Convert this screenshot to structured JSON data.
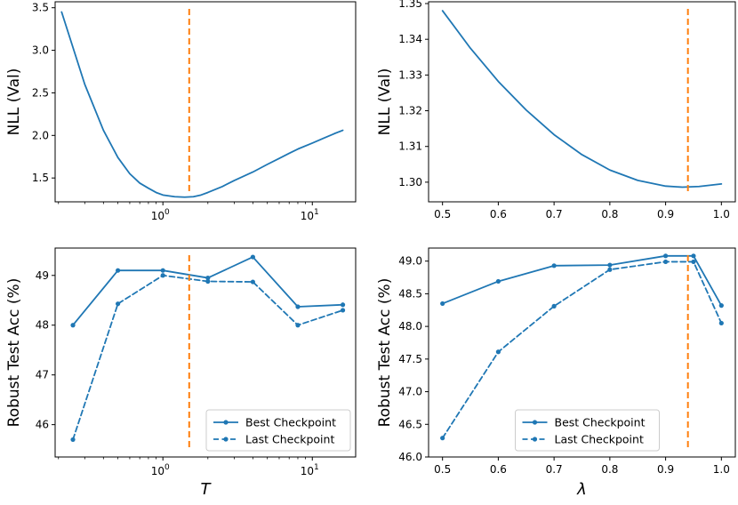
{
  "chart_data": [
    {
      "id": "tl",
      "type": "line",
      "xscale": "log",
      "xlim": [
        0.19,
        19.5
      ],
      "ylim": [
        1.22,
        3.57
      ],
      "ylabel": "NLL (Val)",
      "xlabel": "",
      "xticks": [
        {
          "value": 1,
          "base": "10",
          "exp": "0"
        },
        {
          "value": 10,
          "base": "10",
          "exp": "1"
        }
      ],
      "yticks": [
        {
          "value": 1.5,
          "label": "1.5"
        },
        {
          "value": 2.0,
          "label": "2.0"
        },
        {
          "value": 2.5,
          "label": "2.5"
        },
        {
          "value": 3.0,
          "label": "3.0"
        },
        {
          "value": 3.5,
          "label": "3.5"
        }
      ],
      "vline": 1.5,
      "legend": null,
      "series": [
        {
          "name": "NLL",
          "style": "solid",
          "markers": false,
          "x": [
            0.21,
            0.3,
            0.4,
            0.5,
            0.6,
            0.7,
            0.8,
            0.9,
            1.0,
            1.2,
            1.4,
            1.6,
            1.8,
            2.0,
            2.5,
            3.0,
            4.0,
            5.0,
            6.0,
            7.0,
            8.0,
            10.0,
            12.0,
            14.0,
            16.0
          ],
          "y": [
            3.45,
            2.6,
            2.06,
            1.74,
            1.55,
            1.44,
            1.38,
            1.33,
            1.3,
            1.28,
            1.275,
            1.28,
            1.3,
            1.33,
            1.4,
            1.47,
            1.57,
            1.66,
            1.73,
            1.79,
            1.84,
            1.91,
            1.97,
            2.02,
            2.06
          ]
        }
      ]
    },
    {
      "id": "tr",
      "type": "line",
      "xscale": "linear",
      "xlim": [
        0.475,
        1.025
      ],
      "ylim": [
        1.2945,
        1.3505
      ],
      "ylabel": "NLL (Val)",
      "xlabel": "",
      "xticks": [
        {
          "value": 0.5,
          "label": "0.5"
        },
        {
          "value": 0.6,
          "label": "0.6"
        },
        {
          "value": 0.7,
          "label": "0.7"
        },
        {
          "value": 0.8,
          "label": "0.8"
        },
        {
          "value": 0.9,
          "label": "0.9"
        },
        {
          "value": 1.0,
          "label": "1.0"
        }
      ],
      "yticks": [
        {
          "value": 1.3,
          "label": "1.30"
        },
        {
          "value": 1.31,
          "label": "1.31"
        },
        {
          "value": 1.32,
          "label": "1.32"
        },
        {
          "value": 1.33,
          "label": "1.33"
        },
        {
          "value": 1.34,
          "label": "1.34"
        },
        {
          "value": 1.35,
          "label": "1.35"
        }
      ],
      "vline": 0.94,
      "legend": null,
      "series": [
        {
          "name": "NLL",
          "style": "solid",
          "markers": false,
          "x": [
            0.5,
            0.55,
            0.6,
            0.65,
            0.7,
            0.75,
            0.8,
            0.85,
            0.9,
            0.93,
            0.96,
            1.0
          ],
          "y": [
            1.348,
            1.3375,
            1.3282,
            1.3202,
            1.3133,
            1.3077,
            1.3034,
            1.3005,
            1.2989,
            1.2986,
            1.2988,
            1.2995
          ]
        }
      ]
    },
    {
      "id": "bl",
      "type": "line",
      "xscale": "log",
      "xlim": [
        0.19,
        19.5
      ],
      "ylim": [
        45.35,
        49.55
      ],
      "ylabel": "Robust Test Acc (%)",
      "xlabel": "T",
      "xticks": [
        {
          "value": 1,
          "base": "10",
          "exp": "0"
        },
        {
          "value": 10,
          "base": "10",
          "exp": "1"
        }
      ],
      "yticks": [
        {
          "value": 46,
          "label": "46"
        },
        {
          "value": 47,
          "label": "47"
        },
        {
          "value": 48,
          "label": "48"
        },
        {
          "value": 49,
          "label": "49"
        }
      ],
      "vline": 1.5,
      "legend": {
        "position": "lower-right",
        "entries": [
          "Best Checkpoint",
          "Last Checkpoint"
        ]
      },
      "series": [
        {
          "name": "Best Checkpoint",
          "style": "solid",
          "markers": true,
          "x": [
            0.25,
            0.5,
            1.0,
            2.0,
            4.0,
            8.0,
            16.0
          ],
          "y": [
            48.0,
            49.1,
            49.1,
            48.95,
            49.37,
            48.37,
            48.41
          ]
        },
        {
          "name": "Last Checkpoint",
          "style": "dashed",
          "markers": true,
          "x": [
            0.25,
            0.5,
            1.0,
            2.0,
            4.0,
            8.0,
            16.0
          ],
          "y": [
            45.7,
            48.43,
            49.0,
            48.88,
            48.87,
            48.0,
            48.3
          ]
        }
      ]
    },
    {
      "id": "br",
      "type": "line",
      "xscale": "linear",
      "xlim": [
        0.475,
        1.025
      ],
      "ylim": [
        46.0,
        49.2
      ],
      "ylabel": "Robust Test Acc (%)",
      "xlabel": "λ",
      "xticks": [
        {
          "value": 0.5,
          "label": "0.5"
        },
        {
          "value": 0.6,
          "label": "0.6"
        },
        {
          "value": 0.7,
          "label": "0.7"
        },
        {
          "value": 0.8,
          "label": "0.8"
        },
        {
          "value": 0.9,
          "label": "0.9"
        },
        {
          "value": 1.0,
          "label": "1.0"
        }
      ],
      "yticks": [
        {
          "value": 46.0,
          "label": "46.0"
        },
        {
          "value": 46.5,
          "label": "46.5"
        },
        {
          "value": 47.0,
          "label": "47.0"
        },
        {
          "value": 47.5,
          "label": "47.5"
        },
        {
          "value": 48.0,
          "label": "48.0"
        },
        {
          "value": 48.5,
          "label": "48.5"
        },
        {
          "value": 49.0,
          "label": "49.0"
        }
      ],
      "vline": 0.94,
      "legend": {
        "position": "lower-center",
        "entries": [
          "Best Checkpoint",
          "Last Checkpoint"
        ]
      },
      "series": [
        {
          "name": "Best Checkpoint",
          "style": "solid",
          "markers": true,
          "x": [
            0.5,
            0.6,
            0.7,
            0.8,
            0.9,
            0.95,
            1.0
          ],
          "y": [
            48.35,
            48.69,
            48.93,
            48.94,
            49.08,
            49.08,
            48.32
          ]
        },
        {
          "name": "Last Checkpoint",
          "style": "dashed",
          "markers": true,
          "x": [
            0.5,
            0.6,
            0.7,
            0.8,
            0.9,
            0.95,
            1.0
          ],
          "y": [
            46.29,
            47.61,
            48.31,
            48.87,
            48.99,
            48.99,
            48.05
          ]
        }
      ]
    }
  ],
  "colors": {
    "series": "#1f77b4",
    "vline": "#ff7f0e",
    "axes": "#000000"
  }
}
